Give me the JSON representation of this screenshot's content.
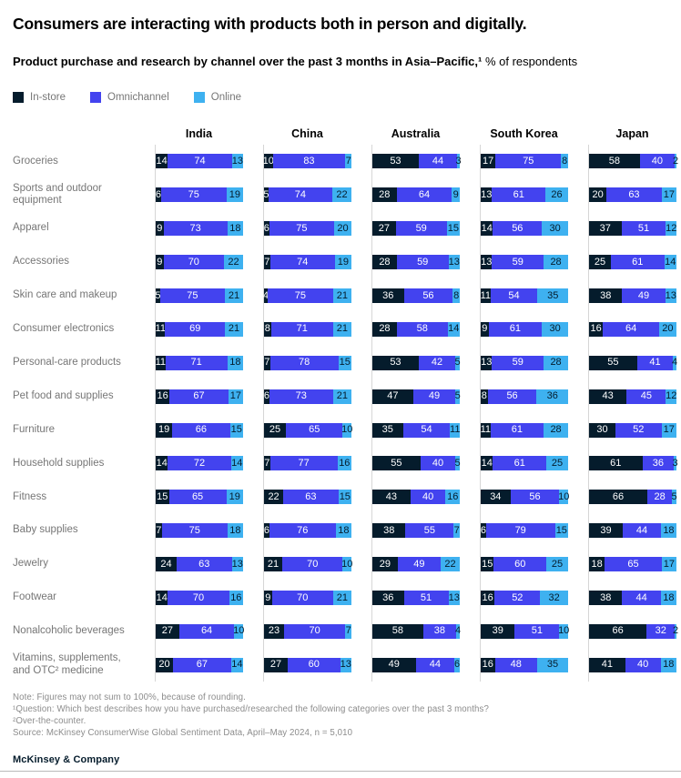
{
  "header": {
    "title": "Consumers are interacting with products both in person and digitally.",
    "subtitle_bold": "Product purchase and research by channel over the past 3 months in Asia–Pacific,¹",
    "subtitle_regular": " % of respondents"
  },
  "colors": {
    "instore": "#051C2C",
    "omnichannel": "#4343EF",
    "online": "#3EB1F0",
    "axis_line": "#d6d6d6",
    "label_gray": "#767676"
  },
  "chart_data": {
    "type": "bar",
    "variant": "horizontal-stacked-small-multiples",
    "unit": "% of respondents",
    "legend_position": "top-left",
    "grid": "vertical-baseline-per-country",
    "xlim": [
      0,
      100
    ],
    "legend": [
      {
        "label": "In-store",
        "color": "#051C2C"
      },
      {
        "label": "Omnichannel",
        "color": "#4343EF"
      },
      {
        "label": "Online",
        "color": "#3EB1F0"
      }
    ],
    "series_keys": [
      "In-store",
      "Omnichannel",
      "Online"
    ],
    "countries": [
      "India",
      "China",
      "Australia",
      "South Korea",
      "Japan"
    ],
    "rows": [
      {
        "category": "Groceries",
        "values": [
          [
            14,
            74,
            13
          ],
          [
            10,
            83,
            7
          ],
          [
            53,
            44,
            3
          ],
          [
            17,
            75,
            8
          ],
          [
            58,
            40,
            2
          ]
        ]
      },
      {
        "category": "Sports and outdoor equipment",
        "values": [
          [
            6,
            75,
            19
          ],
          [
            5,
            74,
            22
          ],
          [
            28,
            64,
            9
          ],
          [
            13,
            61,
            26
          ],
          [
            20,
            63,
            17
          ]
        ]
      },
      {
        "category": "Apparel",
        "values": [
          [
            9,
            73,
            18
          ],
          [
            6,
            75,
            20
          ],
          [
            27,
            59,
            15
          ],
          [
            14,
            56,
            30
          ],
          [
            37,
            51,
            12
          ]
        ]
      },
      {
        "category": "Accessories",
        "values": [
          [
            9,
            70,
            22
          ],
          [
            7,
            74,
            19
          ],
          [
            28,
            59,
            13
          ],
          [
            13,
            59,
            28
          ],
          [
            25,
            61,
            14
          ]
        ]
      },
      {
        "category": "Skin care and makeup",
        "values": [
          [
            5,
            75,
            21
          ],
          [
            4,
            75,
            21
          ],
          [
            36,
            56,
            8
          ],
          [
            11,
            54,
            35
          ],
          [
            38,
            49,
            13
          ]
        ]
      },
      {
        "category": "Consumer electronics",
        "values": [
          [
            11,
            69,
            21
          ],
          [
            8,
            71,
            21
          ],
          [
            28,
            58,
            14
          ],
          [
            9,
            61,
            30
          ],
          [
            16,
            64,
            20
          ]
        ]
      },
      {
        "category": "Personal-care products",
        "values": [
          [
            11,
            71,
            18
          ],
          [
            7,
            78,
            15
          ],
          [
            53,
            42,
            5
          ],
          [
            13,
            59,
            28
          ],
          [
            55,
            41,
            4
          ]
        ]
      },
      {
        "category": "Pet food and supplies",
        "values": [
          [
            16,
            67,
            17
          ],
          [
            6,
            73,
            21
          ],
          [
            47,
            49,
            5
          ],
          [
            8,
            56,
            36
          ],
          [
            43,
            45,
            12
          ]
        ]
      },
      {
        "category": "Furniture",
        "values": [
          [
            19,
            66,
            15
          ],
          [
            25,
            65,
            10
          ],
          [
            35,
            54,
            11
          ],
          [
            11,
            61,
            28
          ],
          [
            30,
            52,
            17
          ]
        ]
      },
      {
        "category": "Household supplies",
        "values": [
          [
            14,
            72,
            14
          ],
          [
            7,
            77,
            16
          ],
          [
            55,
            40,
            5
          ],
          [
            14,
            61,
            25
          ],
          [
            61,
            36,
            3
          ]
        ]
      },
      {
        "category": "Fitness",
        "values": [
          [
            15,
            65,
            19
          ],
          [
            22,
            63,
            15
          ],
          [
            43,
            40,
            16
          ],
          [
            34,
            56,
            10
          ],
          [
            66,
            28,
            5
          ]
        ]
      },
      {
        "category": "Baby supplies",
        "values": [
          [
            7,
            75,
            18
          ],
          [
            6,
            76,
            18
          ],
          [
            38,
            55,
            7
          ],
          [
            6,
            79,
            15
          ],
          [
            39,
            44,
            18
          ]
        ]
      },
      {
        "category": "Jewelry",
        "values": [
          [
            24,
            63,
            13
          ],
          [
            21,
            70,
            10
          ],
          [
            29,
            49,
            22
          ],
          [
            15,
            60,
            25
          ],
          [
            18,
            65,
            17
          ]
        ]
      },
      {
        "category": "Footwear",
        "values": [
          [
            14,
            70,
            16
          ],
          [
            9,
            70,
            21
          ],
          [
            36,
            51,
            13
          ],
          [
            16,
            52,
            32
          ],
          [
            38,
            44,
            18
          ]
        ]
      },
      {
        "category": "Nonalcoholic beverages",
        "values": [
          [
            27,
            64,
            10
          ],
          [
            23,
            70,
            7
          ],
          [
            58,
            38,
            4
          ],
          [
            39,
            51,
            10
          ],
          [
            66,
            32,
            2
          ]
        ]
      },
      {
        "category": "Vitamins, supplements, and OTC² medicine",
        "values": [
          [
            20,
            67,
            14
          ],
          [
            27,
            60,
            13
          ],
          [
            49,
            44,
            6
          ],
          [
            16,
            48,
            35
          ],
          [
            41,
            40,
            18
          ]
        ]
      }
    ]
  },
  "footnotes": {
    "lines": [
      "Note: Figures may not sum to 100%, because of rounding.",
      "¹Question: Which best describes how you have purchased/researched the following categories over the past 3 months?",
      "²Over-the-counter.",
      "Source: McKinsey ConsumerWise Global Sentiment Data, April–May 2024, n = 5,010"
    ]
  },
  "footer": {
    "logo": "McKinsey & Company"
  }
}
